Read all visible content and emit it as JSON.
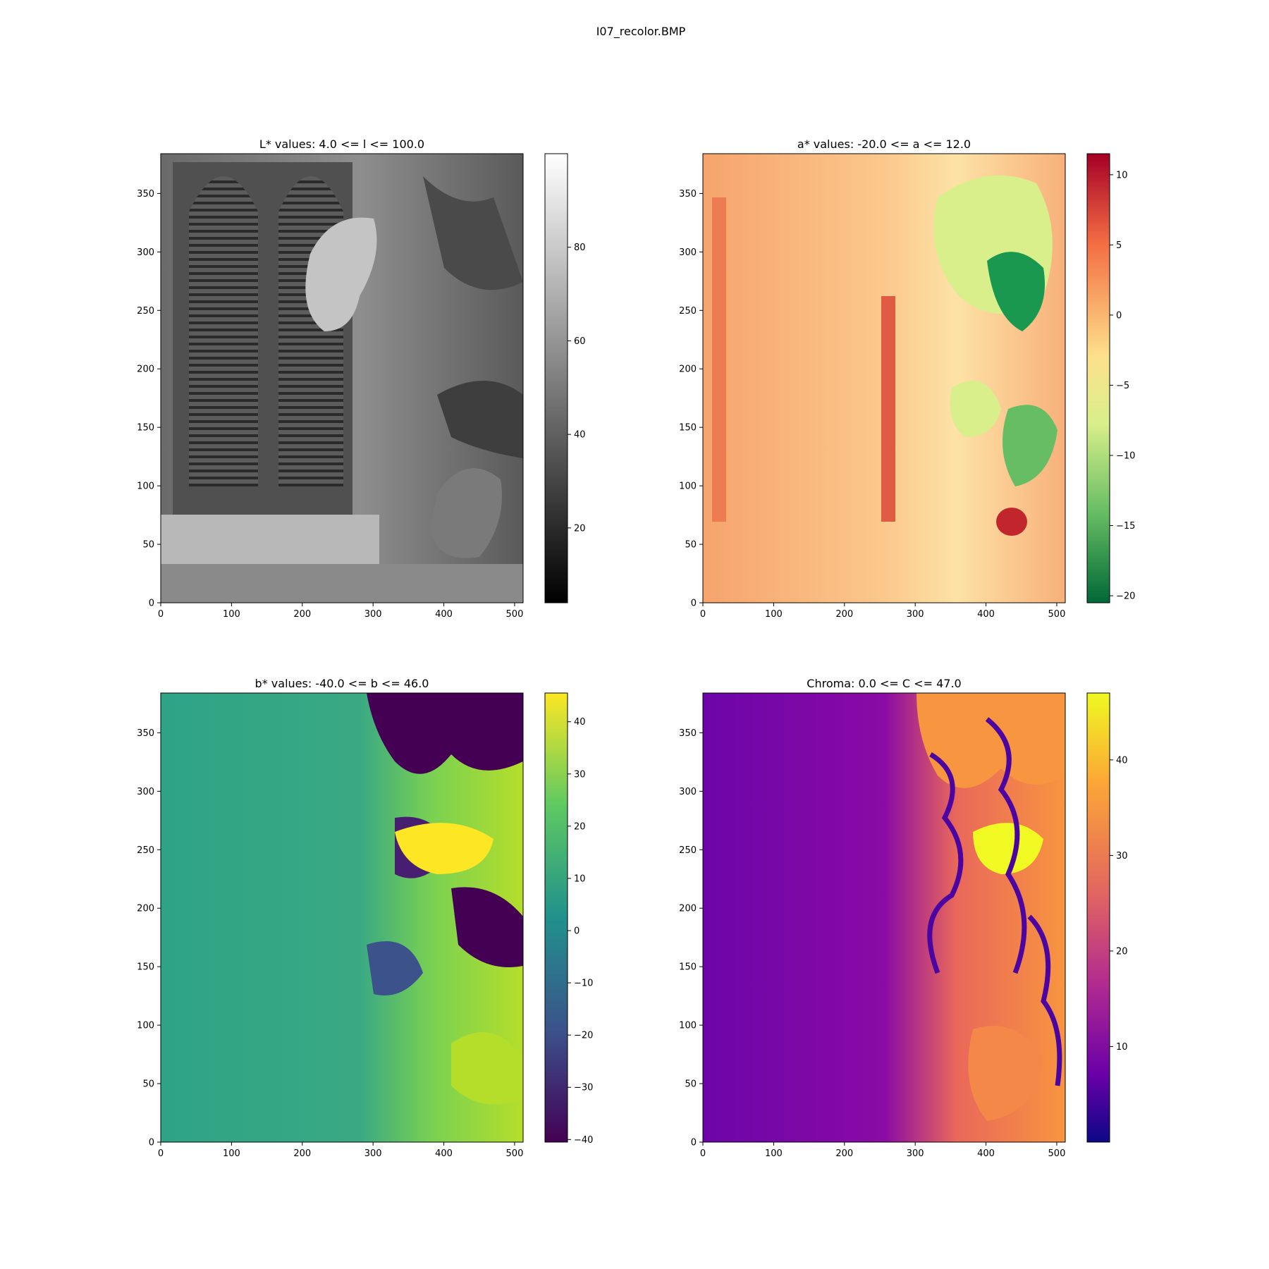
{
  "figure": {
    "suptitle": "I07_recolor.BMP"
  },
  "chart_data": [
    {
      "type": "heatmap",
      "title": "L* values: 4.0 <= l <= 100.0",
      "xlim": [
        0,
        512
      ],
      "ylim": [
        0,
        384
      ],
      "xticks": [
        0,
        100,
        200,
        300,
        400,
        500
      ],
      "yticks": [
        0,
        50,
        100,
        150,
        200,
        250,
        300,
        350
      ],
      "colormap": "gray",
      "colorbar": {
        "vmin": 4,
        "vmax": 100,
        "ticks": [
          20,
          40,
          60,
          80
        ]
      },
      "colors": [
        "#000000",
        "#ffffff"
      ]
    },
    {
      "type": "heatmap",
      "title": "a* values: -20.0 <= a <= 12.0",
      "xlim": [
        0,
        512
      ],
      "ylim": [
        0,
        384
      ],
      "xticks": [
        0,
        100,
        200,
        300,
        400,
        500
      ],
      "yticks": [
        0,
        50,
        100,
        150,
        200,
        250,
        300,
        350
      ],
      "colormap": "RdYlGn_r",
      "colorbar": {
        "vmin": -20.5,
        "vmax": 11.5,
        "ticks": [
          10,
          5,
          0,
          -5,
          -10,
          -15,
          -20
        ],
        "tick_text": [
          "10",
          "5",
          "0",
          "−5",
          "−10",
          "−15",
          "−20"
        ]
      },
      "colors": [
        "#a50026",
        "#f46d43",
        "#fee08b",
        "#d9ef8b",
        "#66bd63",
        "#006837"
      ]
    },
    {
      "type": "heatmap",
      "title": "b* values: -40.0 <= b <= 46.0",
      "xlim": [
        0,
        512
      ],
      "ylim": [
        0,
        384
      ],
      "xticks": [
        0,
        100,
        200,
        300,
        400,
        500
      ],
      "yticks": [
        0,
        50,
        100,
        150,
        200,
        250,
        300,
        350
      ],
      "colormap": "viridis",
      "colorbar": {
        "vmin": -40.5,
        "vmax": 45.5,
        "ticks": [
          40,
          30,
          20,
          10,
          0,
          -10,
          -20,
          -30,
          -40
        ],
        "tick_text": [
          "40",
          "30",
          "20",
          "10",
          "0",
          "−10",
          "−20",
          "−30",
          "−40"
        ]
      },
      "colors": [
        "#fde725",
        "#5ec962",
        "#21918c",
        "#3b528b",
        "#440154"
      ]
    },
    {
      "type": "heatmap",
      "title": "Chroma: 0.0 <= C <= 47.0",
      "xlim": [
        0,
        512
      ],
      "ylim": [
        0,
        384
      ],
      "xticks": [
        0,
        100,
        200,
        300,
        400,
        500
      ],
      "yticks": [
        0,
        50,
        100,
        150,
        200,
        250,
        300,
        350
      ],
      "colormap": "plasma",
      "colorbar": {
        "vmin": 0,
        "vmax": 47,
        "ticks": [
          40,
          30,
          20,
          10
        ]
      },
      "colors": [
        "#f0f921",
        "#fca636",
        "#e16462",
        "#b12a90",
        "#6a00a8",
        "#0d0887"
      ]
    }
  ]
}
